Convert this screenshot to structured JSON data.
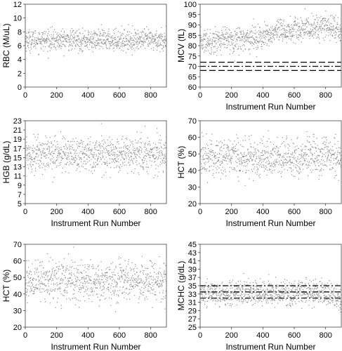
{
  "chart_data": [
    {
      "type": "scatter",
      "ylabel": "RBC (M/uL)",
      "xlabel": "",
      "xlim": [
        0,
        900
      ],
      "ylim": [
        0,
        12
      ],
      "xticks": [
        0,
        200,
        400,
        600,
        800
      ],
      "yticks": [
        0,
        2,
        4,
        6,
        8,
        10,
        12
      ],
      "grid": false,
      "series": [
        {
          "model": {
            "mean": 6.8,
            "sd": 0.75,
            "trend": 0,
            "tail": 0
          }
        }
      ],
      "ref_lines": []
    },
    {
      "type": "scatter",
      "ylabel": "MCV (fL)",
      "xlabel": "Instrument Run Number",
      "xlim": [
        0,
        900
      ],
      "ylim": [
        60,
        100
      ],
      "xticks": [
        0,
        200,
        400,
        600,
        800
      ],
      "yticks": [
        60,
        65,
        70,
        75,
        80,
        85,
        90,
        95,
        100
      ],
      "grid": false,
      "series": [
        {
          "model": {
            "mean": 82,
            "sd": 3.0,
            "trend": 8,
            "tail": -4
          }
        }
      ],
      "ref_lines": [
        {
          "y": 72,
          "style": "dash"
        },
        {
          "y": 70,
          "style": "dashdot"
        },
        {
          "y": 68,
          "style": "dash"
        }
      ]
    },
    {
      "type": "scatter",
      "ylabel": "HGB (g/dL)",
      "xlabel": "Instrument Run Number",
      "xlim": [
        0,
        900
      ],
      "ylim": [
        5,
        23
      ],
      "xticks": [
        0,
        200,
        400,
        600,
        800
      ],
      "yticks": [
        5,
        7,
        9,
        11,
        13,
        15,
        17,
        19,
        21,
        23
      ],
      "grid": false,
      "series": [
        {
          "model": {
            "mean": 15.8,
            "sd": 1.9,
            "trend": 0,
            "tail": 0
          }
        }
      ],
      "ref_lines": []
    },
    {
      "type": "scatter",
      "ylabel": "HCT (%)",
      "xlabel": "Instrument Run Number",
      "xlim": [
        0,
        900
      ],
      "ylim": [
        20,
        70
      ],
      "xticks": [
        0,
        200,
        400,
        600,
        800
      ],
      "yticks": [
        20,
        30,
        40,
        50,
        60,
        70
      ],
      "grid": false,
      "series": [
        {
          "model": {
            "mean": 48,
            "sd": 6.0,
            "trend": 0,
            "tail": 0
          }
        }
      ],
      "ref_lines": []
    },
    {
      "type": "scatter",
      "ylabel": "HCT (%)",
      "xlabel": "Instrument Run Number",
      "xlim": [
        0,
        900
      ],
      "ylim": [
        20,
        70
      ],
      "xticks": [
        0,
        200,
        400,
        600,
        800
      ],
      "yticks": [
        20,
        30,
        40,
        50,
        60,
        70
      ],
      "grid": false,
      "series": [
        {
          "model": {
            "mean": 48,
            "sd": 6.0,
            "trend": 0,
            "tail": 0
          }
        }
      ],
      "ref_lines": []
    },
    {
      "type": "scatter",
      "ylabel": "MCHC (g/dL)",
      "xlabel": "Instrument Run Number",
      "xlim": [
        0,
        900
      ],
      "ylim": [
        25,
        45
      ],
      "xticks": [
        0,
        200,
        400,
        600,
        800
      ],
      "yticks": [
        25,
        27,
        29,
        31,
        33,
        35,
        37,
        39,
        41,
        43,
        45
      ],
      "grid": false,
      "series": [
        {
          "model": {
            "mean": 33.2,
            "sd": 1.5,
            "trend": 0,
            "tail": -3
          }
        }
      ],
      "ref_lines": [
        {
          "y": 35,
          "style": "dashdot"
        },
        {
          "y": 33.5,
          "style": "dashdot"
        },
        {
          "y": 32,
          "style": "dashdot"
        }
      ]
    }
  ]
}
